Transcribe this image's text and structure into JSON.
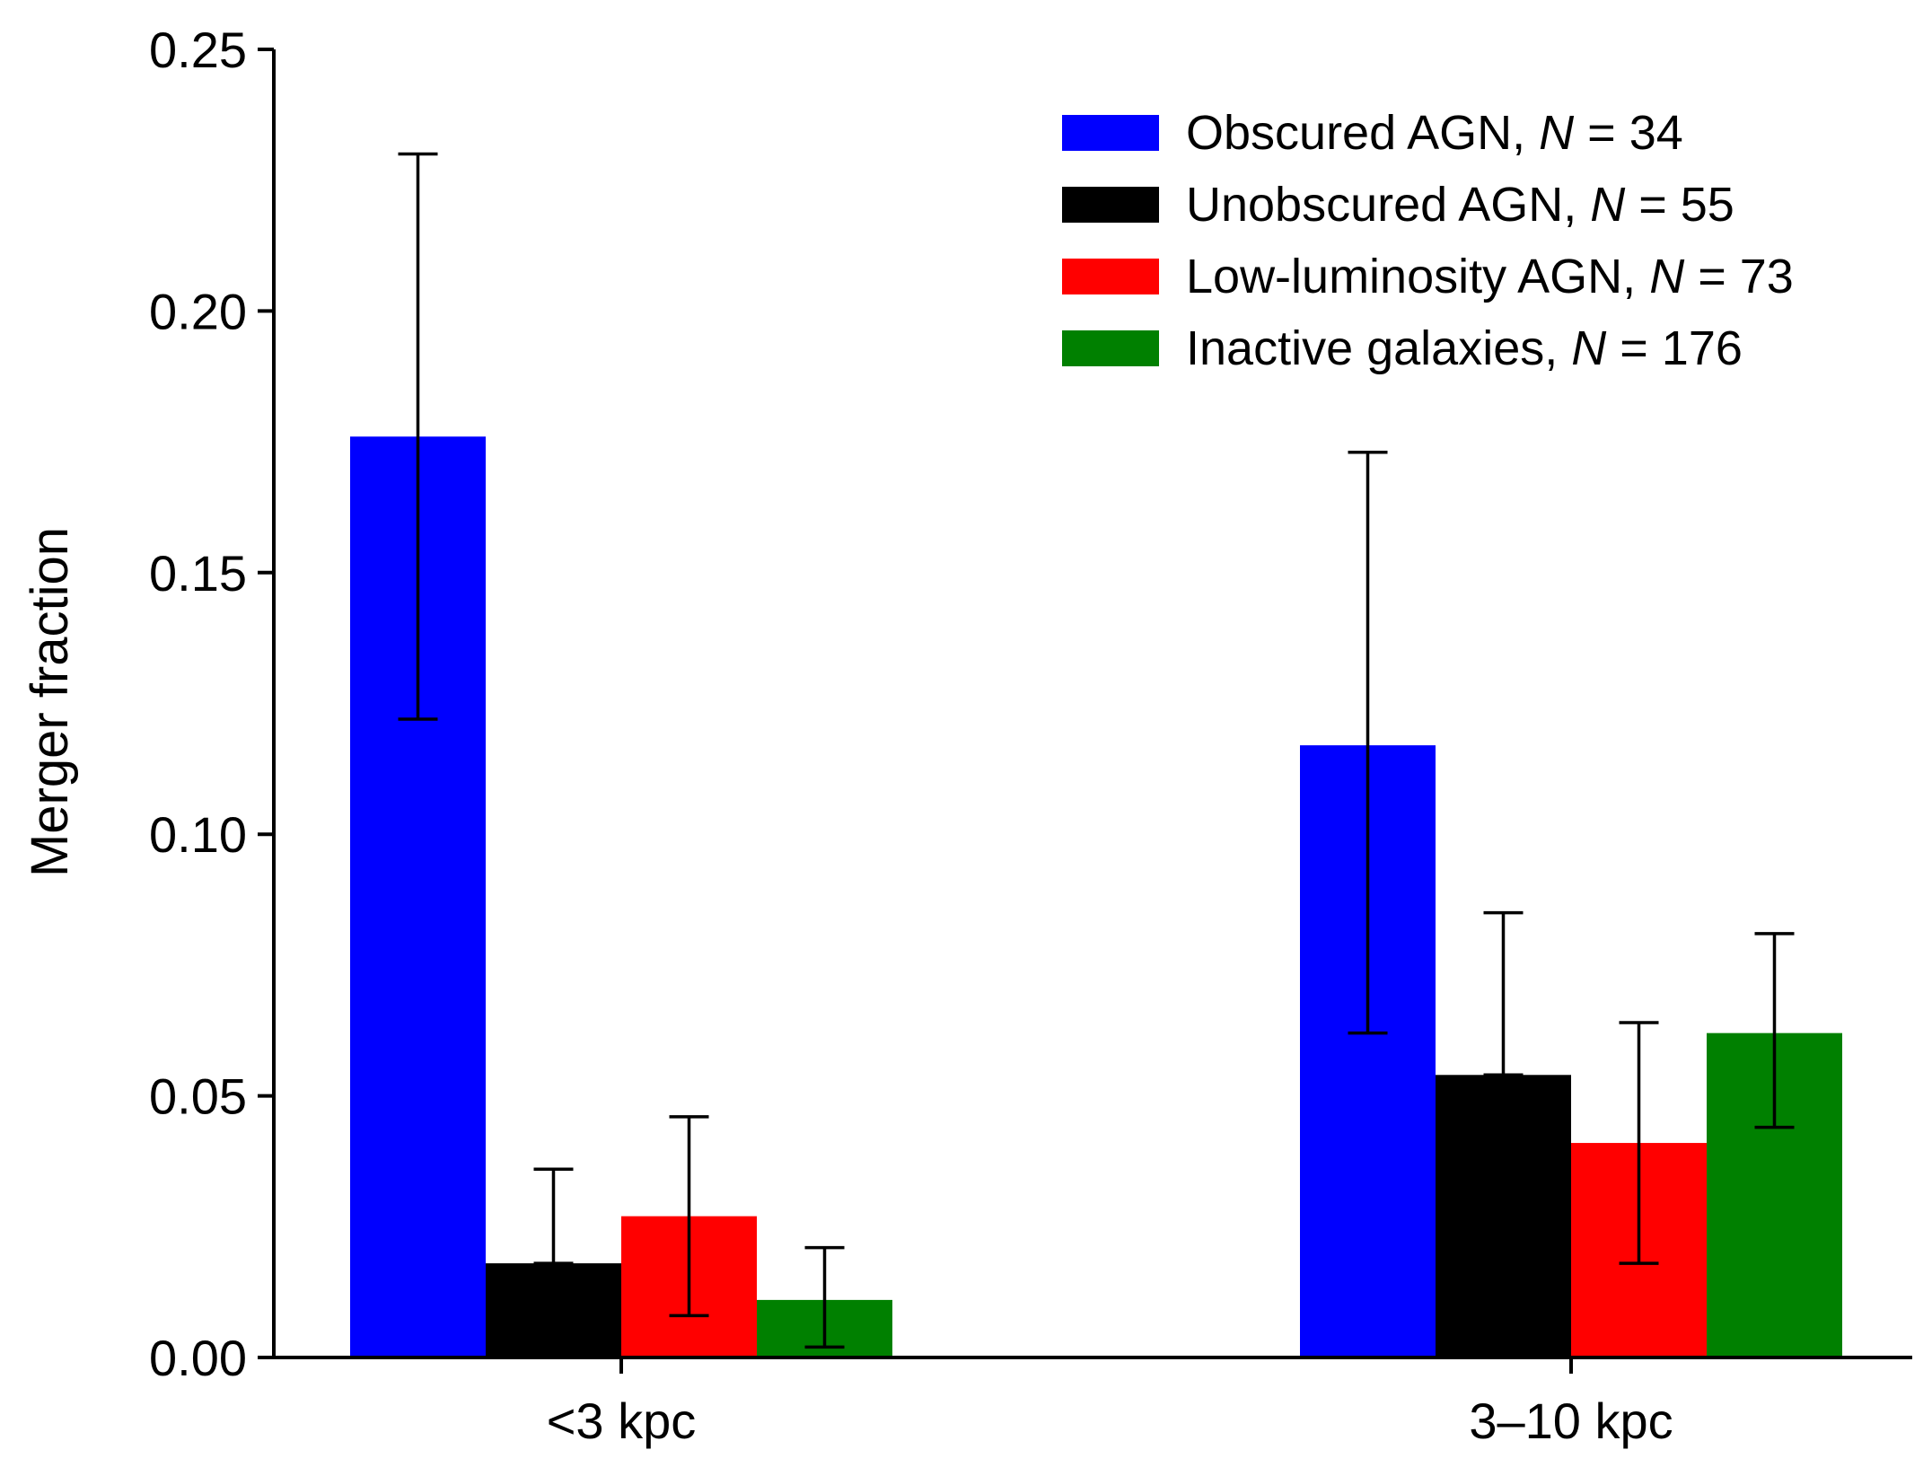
{
  "chart_data": {
    "type": "bar",
    "title": "",
    "xlabel": "",
    "ylabel": "Merger fraction",
    "ylim": [
      0,
      0.25
    ],
    "yticks": [
      "0.00",
      "0.05",
      "0.10",
      "0.15",
      "0.20",
      "0.25"
    ],
    "ytick_values": [
      0,
      0.05,
      0.1,
      0.15,
      0.2,
      0.25
    ],
    "categories": [
      "<3 kpc",
      "3–10 kpc"
    ],
    "legend_position": "top-right",
    "series": [
      {
        "name": "Obscured AGN",
        "n_label": "N",
        "n_value": "= 34",
        "color": "#0000ff",
        "values": [
          0.176,
          0.117
        ],
        "err_low": [
          0.122,
          0.062
        ],
        "err_high": [
          0.23,
          0.173
        ]
      },
      {
        "name": "Unobscured AGN",
        "n_label": "N",
        "n_value": "= 55",
        "color": "#000000",
        "values": [
          0.018,
          0.054
        ],
        "err_low": [
          0.018,
          0.054
        ],
        "err_high": [
          0.036,
          0.085
        ]
      },
      {
        "name": "Low-luminosity AGN",
        "n_label": "N",
        "n_value": "= 73",
        "color": "#ff0000",
        "values": [
          0.027,
          0.041
        ],
        "err_low": [
          0.008,
          0.018
        ],
        "err_high": [
          0.046,
          0.064
        ]
      },
      {
        "name": "Inactive galaxies",
        "n_label": "N",
        "n_value": "= 176",
        "color": "#008000",
        "values": [
          0.011,
          0.062
        ],
        "err_low": [
          0.002,
          0.044
        ],
        "err_high": [
          0.021,
          0.081
        ]
      }
    ]
  }
}
